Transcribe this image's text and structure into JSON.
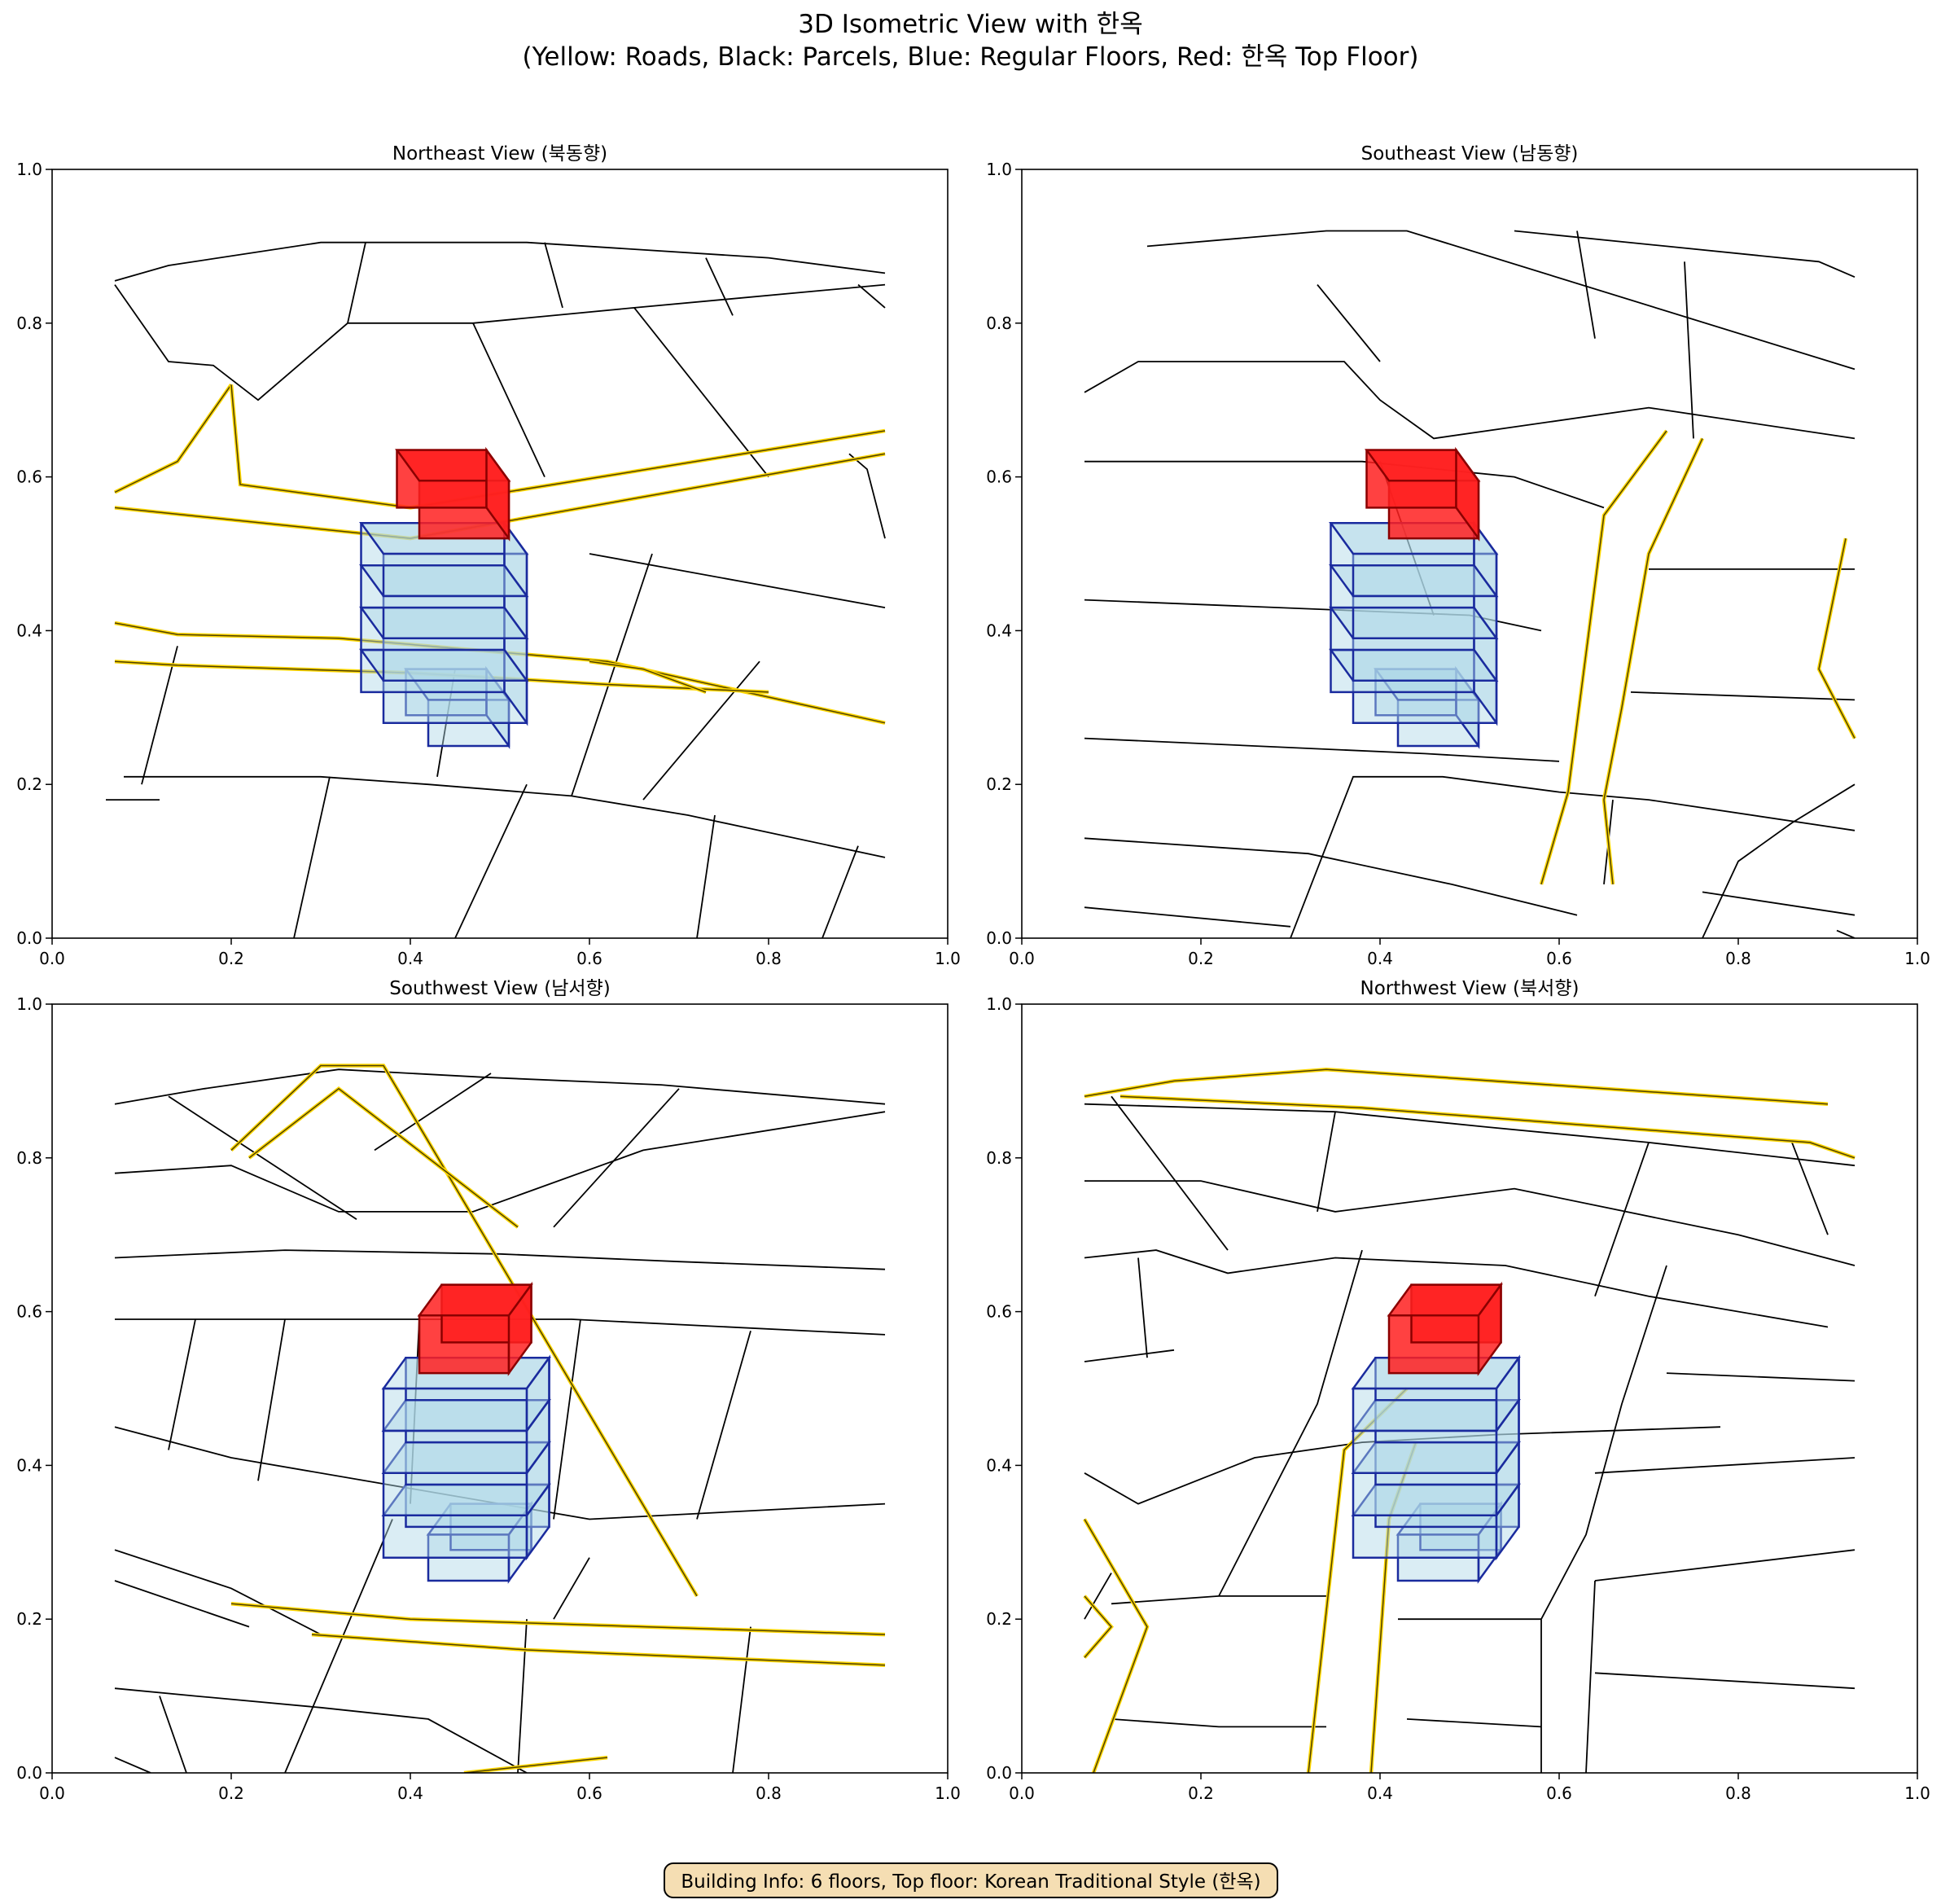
{
  "figure": {
    "title_line1": "3D Isometric View with 한옥",
    "title_line2": "(Yellow: Roads, Black: Parcels, Blue: Regular Floors, Red: 한옥 Top Floor)",
    "info": "Building Info: 6 floors, Top floor: Korean Traditional Style (한옥)"
  },
  "colors": {
    "road": "#ffd700",
    "road_edge": "#4d4000",
    "parcel": "#000000",
    "floor_fill": "#add8e6",
    "floor_edge": "#1a2b9e",
    "hanok_fill": "#ff2020",
    "hanok_edge": "#8b0000"
  },
  "axis": {
    "xlim": [
      0,
      1
    ],
    "ylim": [
      0,
      1
    ],
    "ticks": [
      "0.0",
      "0.2",
      "0.4",
      "0.6",
      "0.8",
      "1.0"
    ]
  },
  "chart_data": [
    {
      "type": "diagram",
      "title": "Northeast View (북동향)",
      "view": "NE",
      "building": {
        "floors": 6,
        "top_floor": "hanok",
        "center": [
          0.5,
          0.45
        ]
      }
    },
    {
      "type": "diagram",
      "title": "Southeast View (남동향)",
      "view": "SE",
      "building": {
        "floors": 6,
        "top_floor": "hanok",
        "center": [
          0.5,
          0.45
        ]
      }
    },
    {
      "type": "diagram",
      "title": "Southwest View (남서향)",
      "view": "SW",
      "building": {
        "floors": 6,
        "top_floor": "hanok",
        "center": [
          0.5,
          0.45
        ]
      }
    },
    {
      "type": "diagram",
      "title": "Northwest View (북서향)",
      "view": "NW",
      "building": {
        "floors": 6,
        "top_floor": "hanok",
        "center": [
          0.5,
          0.45
        ]
      }
    }
  ]
}
